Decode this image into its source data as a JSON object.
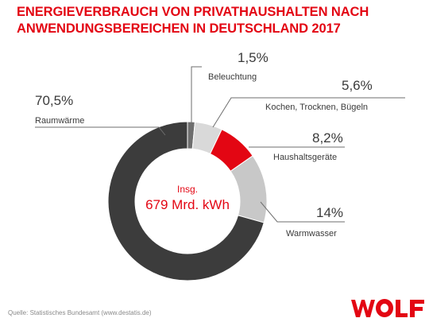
{
  "title_lines": [
    "ENERGIEVERBRAUCH VON PRIVATHAUSHALTEN NACH",
    "ANWENDUNGSBEREICHEN IN DEUTSCHLAND 2017"
  ],
  "chart_data": {
    "type": "pie",
    "donut": true,
    "title": "ENERGIEVERBRAUCH VON PRIVATHAUSHALTEN NACH ANWENDUNGSBEREICHEN IN DEUTSCHLAND 2017",
    "center": {
      "line1": "Insg.",
      "line2": "679 Mrd. kWh"
    },
    "slices": [
      {
        "label": "Beleuchtung",
        "value": 1.5,
        "value_label": "1,5%",
        "color": "#6e6e6e"
      },
      {
        "label": "Kochen, Trocknen, Bügeln",
        "value": 5.6,
        "value_label": "5,6%",
        "color": "#d9d9d9"
      },
      {
        "label": "Haushaltsgeräte",
        "value": 8.2,
        "value_label": "8,2%",
        "color": "#e30613"
      },
      {
        "label": "Warmwasser",
        "value": 14,
        "value_label": "14%",
        "color": "#c8c8c8"
      },
      {
        "label": "Raumwärme",
        "value": 70.5,
        "value_label": "70,5%",
        "color": "#3c3c3c"
      }
    ]
  },
  "source": "Quelle: Statistisches Bundesamt (www.destatis.de)",
  "logo": {
    "text": "WOLF",
    "color": "#e30613"
  }
}
